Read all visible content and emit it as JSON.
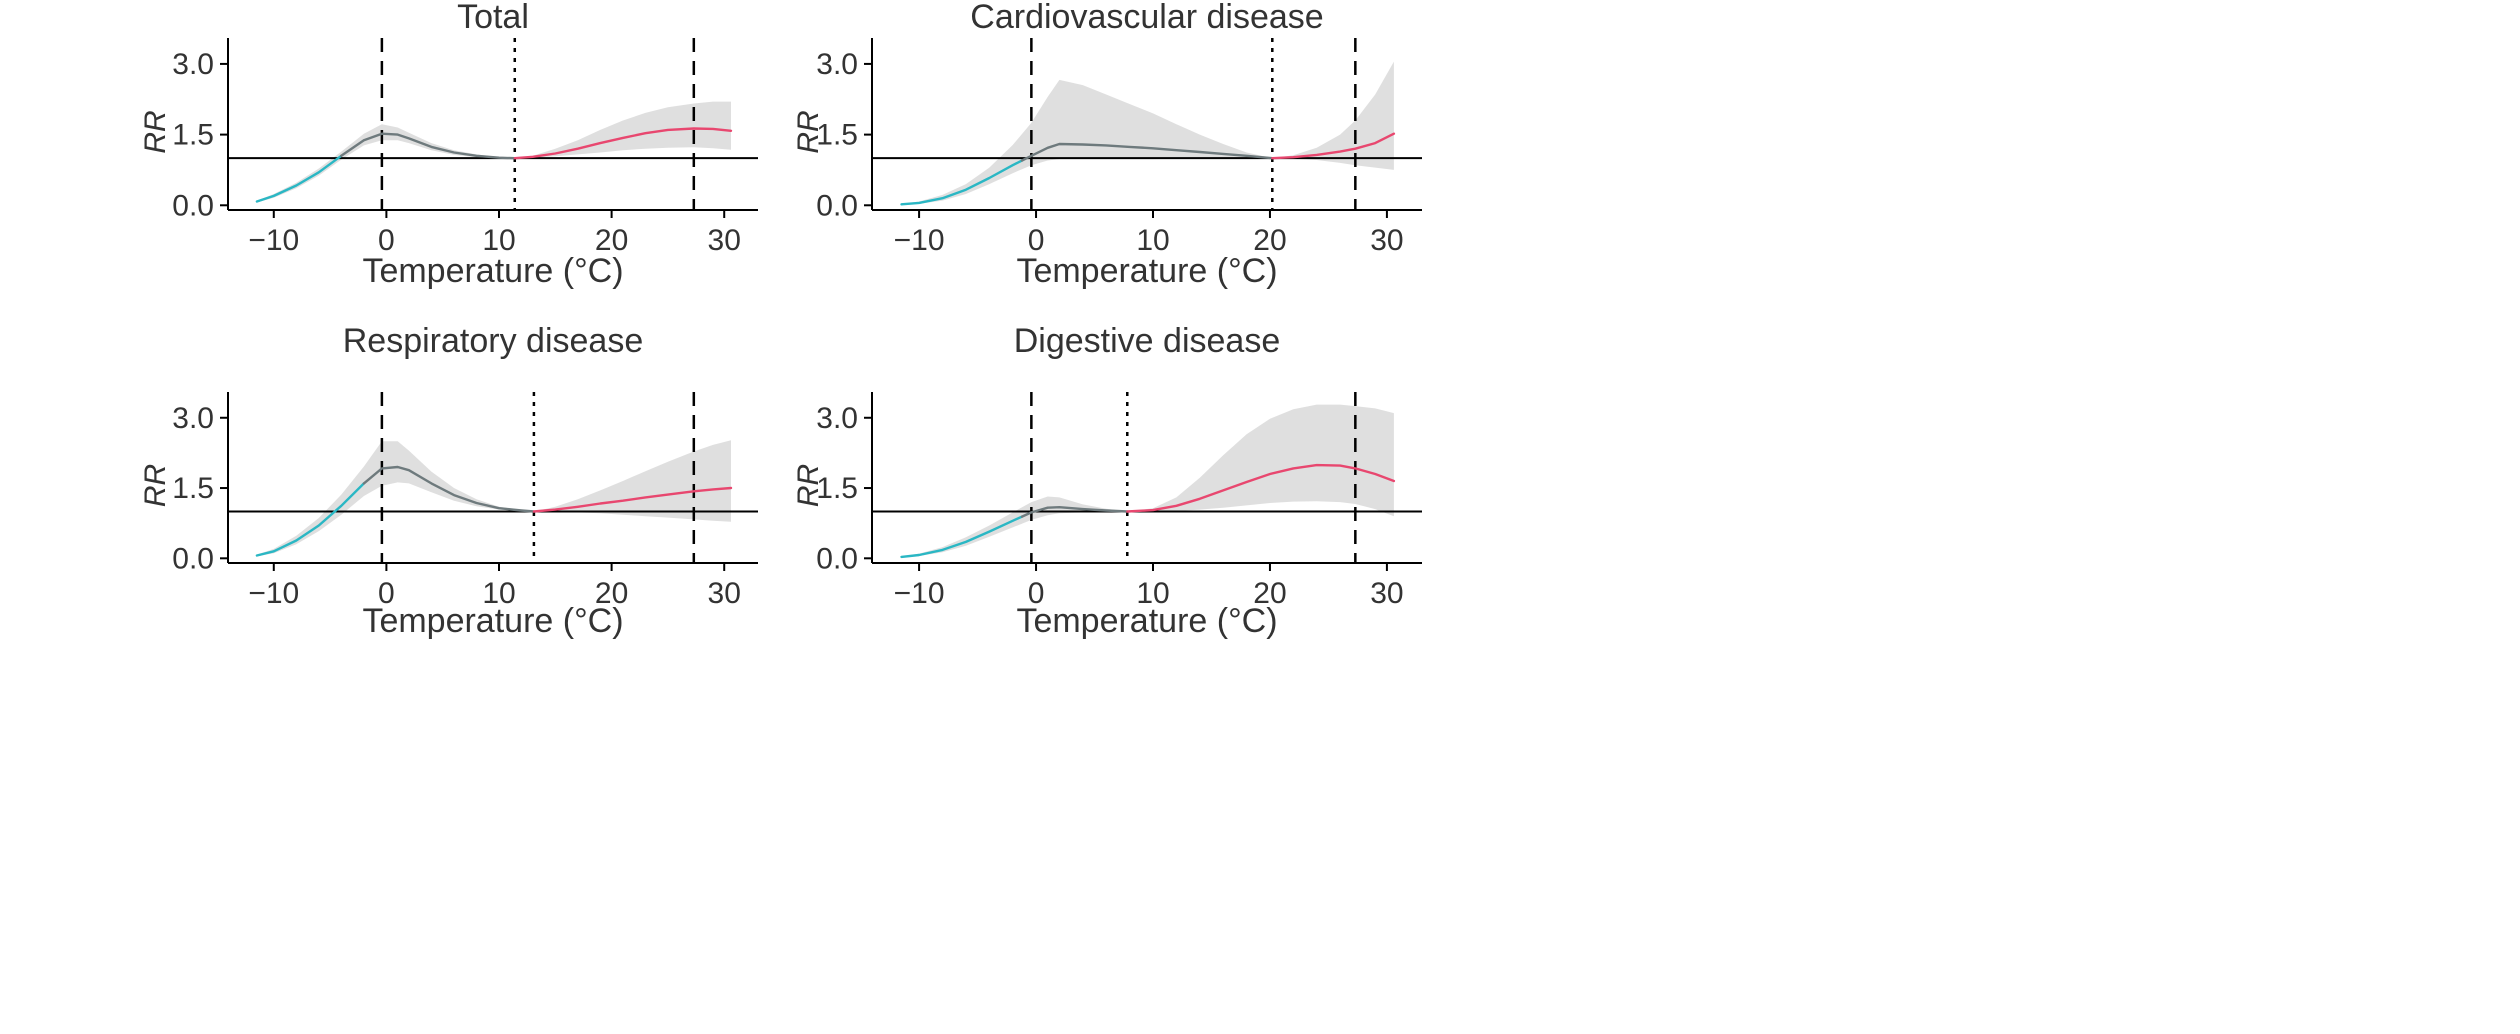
{
  "chart_data": [
    {
      "type": "line",
      "title": "Total",
      "xlabel": "Temperature (°C)",
      "ylabel": "RR",
      "xlim": [
        -13,
        33
      ],
      "ylim": [
        -0.1,
        3.55
      ],
      "xticks": [
        "−10",
        "0",
        "10",
        "20",
        "30"
      ],
      "xtick_values": [
        -10,
        0,
        10,
        20,
        30
      ],
      "yticks": [
        "0.0",
        "1.5",
        "3.0"
      ],
      "ytick_values": [
        0,
        1.5,
        3.0
      ],
      "reference_y": 1.0,
      "dashed_x": [
        -0.4,
        27.3
      ],
      "dotted_x": 11.4,
      "x": [
        -11.5,
        -10,
        -8,
        -6,
        -4,
        -2,
        -0.4,
        1,
        2,
        4,
        6,
        8,
        10,
        11.4,
        13,
        15,
        17,
        19,
        21,
        23,
        25,
        27.3,
        29,
        30.6
      ],
      "y": [
        0.08,
        0.2,
        0.42,
        0.7,
        1.05,
        1.38,
        1.52,
        1.5,
        1.42,
        1.24,
        1.12,
        1.05,
        1.01,
        1.0,
        1.03,
        1.1,
        1.2,
        1.32,
        1.43,
        1.53,
        1.6,
        1.63,
        1.62,
        1.58
      ],
      "ci_lower": [
        0.06,
        0.16,
        0.36,
        0.63,
        0.97,
        1.27,
        1.38,
        1.38,
        1.32,
        1.17,
        1.07,
        1.02,
        1.0,
        1.0,
        1.01,
        1.04,
        1.08,
        1.12,
        1.17,
        1.2,
        1.22,
        1.23,
        1.21,
        1.18
      ],
      "ci_upper": [
        0.1,
        0.24,
        0.48,
        0.78,
        1.14,
        1.52,
        1.72,
        1.65,
        1.54,
        1.32,
        1.17,
        1.08,
        1.02,
        1.0,
        1.05,
        1.2,
        1.38,
        1.6,
        1.8,
        1.96,
        2.08,
        2.16,
        2.2,
        2.2
      ],
      "cold_until": -4,
      "hot_from": 11.4,
      "colors": {
        "cold": "#2ab7c4",
        "neutral": "#6e7a7d",
        "hot": "#e8476f",
        "band": "#d9d9d9"
      }
    },
    {
      "type": "line",
      "title": "Cardiovascular disease",
      "xlabel": "Temperature (°C)",
      "ylabel": "RR",
      "xlim": [
        -13,
        33
      ],
      "ylim": [
        -0.1,
        3.55
      ],
      "xticks": [
        "−10",
        "0",
        "10",
        "20",
        "30"
      ],
      "xtick_values": [
        -10,
        0,
        10,
        20,
        30
      ],
      "yticks": [
        "0.0",
        "1.5",
        "3.0"
      ],
      "ytick_values": [
        0,
        1.5,
        3.0
      ],
      "reference_y": 1.0,
      "dashed_x": [
        -0.4,
        27.3
      ],
      "dotted_x": 20.2,
      "x": [
        -11.5,
        -10,
        -8,
        -6,
        -4,
        -2,
        -0.4,
        1,
        2,
        4,
        6,
        8,
        10,
        12,
        14,
        16,
        18,
        20.2,
        22,
        24,
        26,
        27.3,
        29,
        30.6
      ],
      "y": [
        0.02,
        0.05,
        0.15,
        0.33,
        0.58,
        0.85,
        1.05,
        1.22,
        1.3,
        1.29,
        1.27,
        1.24,
        1.21,
        1.17,
        1.13,
        1.09,
        1.05,
        1.0,
        1.02,
        1.07,
        1.14,
        1.2,
        1.32,
        1.52
      ],
      "ci_lower": [
        0.01,
        0.03,
        0.1,
        0.24,
        0.45,
        0.68,
        0.85,
        0.95,
        0.98,
        0.98,
        0.98,
        0.98,
        0.98,
        0.99,
        0.99,
        0.99,
        1.0,
        1.0,
        0.99,
        0.96,
        0.9,
        0.85,
        0.8,
        0.75
      ],
      "ci_upper": [
        0.03,
        0.08,
        0.22,
        0.45,
        0.8,
        1.28,
        1.75,
        2.3,
        2.66,
        2.55,
        2.35,
        2.15,
        1.95,
        1.72,
        1.5,
        1.3,
        1.12,
        1.0,
        1.06,
        1.22,
        1.5,
        1.8,
        2.35,
        3.05
      ],
      "cold_until": -1.2,
      "hot_from": 20.2,
      "colors": {
        "cold": "#2ab7c4",
        "neutral": "#6e7a7d",
        "hot": "#e8476f",
        "band": "#d9d9d9"
      }
    },
    {
      "type": "line",
      "title": "Respiratory disease",
      "xlabel": "Temperature (°C)",
      "ylabel": "RR",
      "xlim": [
        -13,
        33
      ],
      "ylim": [
        -0.1,
        3.55
      ],
      "xticks": [
        "−10",
        "0",
        "10",
        "20",
        "30"
      ],
      "xtick_values": [
        -10,
        0,
        10,
        20,
        30
      ],
      "yticks": [
        "0.0",
        "1.5",
        "3.0"
      ],
      "ytick_values": [
        0,
        1.5,
        3.0
      ],
      "reference_y": 1.0,
      "dashed_x": [
        -0.4,
        27.3
      ],
      "dotted_x": 13.1,
      "x": [
        -11.5,
        -10,
        -8,
        -6,
        -4,
        -2,
        -0.4,
        1,
        2,
        4,
        6,
        8,
        10,
        12,
        13.1,
        15,
        17,
        19,
        21,
        23,
        25,
        27.3,
        29,
        30.6
      ],
      "y": [
        0.06,
        0.15,
        0.38,
        0.7,
        1.12,
        1.6,
        1.92,
        1.95,
        1.88,
        1.6,
        1.35,
        1.18,
        1.07,
        1.02,
        1.0,
        1.04,
        1.1,
        1.17,
        1.23,
        1.3,
        1.36,
        1.43,
        1.47,
        1.5
      ],
      "ci_lower": [
        0.04,
        0.11,
        0.3,
        0.58,
        0.93,
        1.33,
        1.55,
        1.62,
        1.6,
        1.41,
        1.23,
        1.11,
        1.04,
        1.01,
        1.0,
        0.99,
        0.98,
        0.96,
        0.93,
        0.9,
        0.87,
        0.83,
        0.8,
        0.78
      ],
      "ci_upper": [
        0.08,
        0.2,
        0.48,
        0.86,
        1.36,
        1.96,
        2.5,
        2.5,
        2.3,
        1.85,
        1.5,
        1.26,
        1.1,
        1.03,
        1.0,
        1.1,
        1.26,
        1.45,
        1.65,
        1.86,
        2.06,
        2.28,
        2.42,
        2.52
      ],
      "cold_until": -2,
      "hot_from": 13.1,
      "colors": {
        "cold": "#2ab7c4",
        "neutral": "#6e7a7d",
        "hot": "#e8476f",
        "band": "#d9d9d9"
      }
    },
    {
      "type": "line",
      "title": "Digestive disease",
      "xlabel": "Temperature (°C)",
      "ylabel": "RR",
      "xlim": [
        -13,
        33
      ],
      "ylim": [
        -0.1,
        3.55
      ],
      "xticks": [
        "−10",
        "0",
        "10",
        "20",
        "30"
      ],
      "xtick_values": [
        -10,
        0,
        10,
        20,
        30
      ],
      "yticks": [
        "0.0",
        "1.5",
        "3.0"
      ],
      "ytick_values": [
        0,
        1.5,
        3.0
      ],
      "reference_y": 1.0,
      "dashed_x": [
        -0.4,
        27.3
      ],
      "dotted_x": 7.8,
      "x": [
        -11.5,
        -10,
        -8,
        -6,
        -4,
        -2,
        -0.4,
        1,
        2,
        4,
        6,
        7.8,
        10,
        12,
        14,
        16,
        18,
        20,
        22,
        24,
        26,
        27.3,
        29,
        30.6
      ],
      "y": [
        0.03,
        0.07,
        0.18,
        0.35,
        0.57,
        0.8,
        0.98,
        1.08,
        1.09,
        1.05,
        1.02,
        1.0,
        1.03,
        1.12,
        1.27,
        1.45,
        1.63,
        1.8,
        1.92,
        1.99,
        1.98,
        1.92,
        1.8,
        1.65
      ],
      "ci_lower": [
        0.02,
        0.05,
        0.13,
        0.27,
        0.46,
        0.66,
        0.82,
        0.92,
        0.96,
        0.98,
        0.99,
        1.0,
        1.0,
        1.01,
        1.04,
        1.08,
        1.13,
        1.18,
        1.21,
        1.22,
        1.2,
        1.16,
        1.05,
        0.9
      ],
      "ci_upper": [
        0.04,
        0.1,
        0.24,
        0.45,
        0.7,
        0.98,
        1.2,
        1.32,
        1.3,
        1.15,
        1.06,
        1.0,
        1.07,
        1.3,
        1.72,
        2.2,
        2.65,
        2.98,
        3.18,
        3.28,
        3.28,
        3.25,
        3.2,
        3.1
      ],
      "cold_until": -1.2,
      "hot_from": 7.8,
      "colors": {
        "cold": "#2ab7c4",
        "neutral": "#6e7a7d",
        "hot": "#e8476f",
        "band": "#d9d9d9"
      }
    }
  ]
}
